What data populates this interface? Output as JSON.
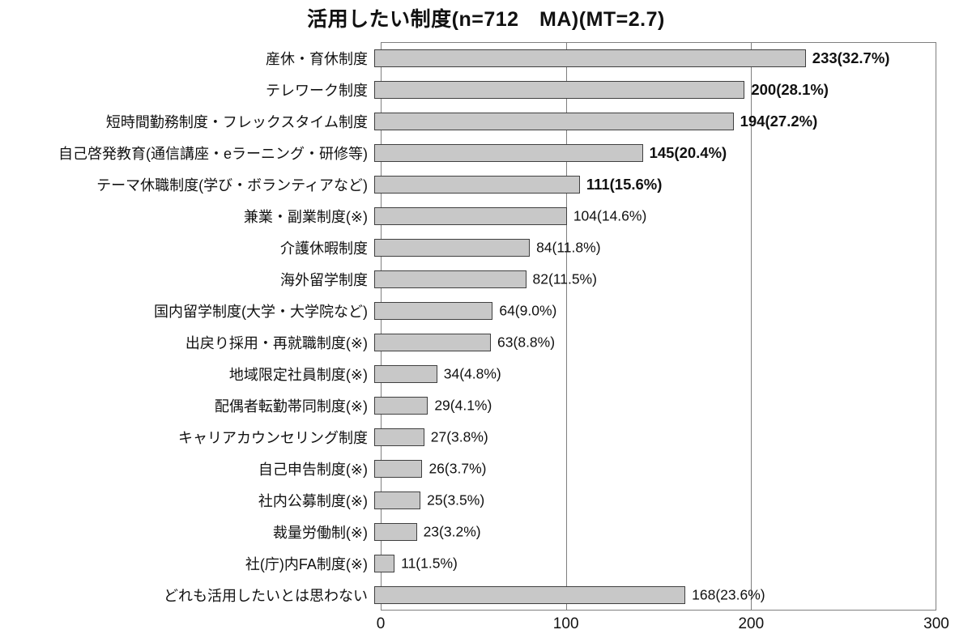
{
  "title": "活用したい制度(n=712　MA)(MT=2.7)",
  "chart_data": {
    "type": "bar",
    "orientation": "horizontal",
    "title": "活用したい制度(n=712　MA)(MT=2.7)",
    "xlabel": "",
    "ylabel": "",
    "xlim": [
      0,
      300
    ],
    "x_ticks": [
      0,
      100,
      200,
      300
    ],
    "grid": "vertical gridlines at 100 and 200",
    "legend": "none",
    "bar_color": "#c8c8c8",
    "bar_border_color": "#404040",
    "items": [
      {
        "label": "産休・育休制度",
        "value": 233,
        "display": "233(32.7%)",
        "bold": true
      },
      {
        "label": "テレワーク制度",
        "value": 200,
        "display": "200(28.1%)",
        "bold": true
      },
      {
        "label": "短時間勤務制度・フレックスタイム制度",
        "value": 194,
        "display": "194(27.2%)",
        "bold": true
      },
      {
        "label": "自己啓発教育(通信講座・eラーニング・研修等)",
        "value": 145,
        "display": "145(20.4%)",
        "bold": true
      },
      {
        "label": "テーマ休職制度(学び・ボランティアなど)",
        "value": 111,
        "display": "111(15.6%)",
        "bold": true
      },
      {
        "label": "兼業・副業制度(※)",
        "value": 104,
        "display": "104(14.6%)",
        "bold": false
      },
      {
        "label": "介護休暇制度",
        "value": 84,
        "display": "84(11.8%)",
        "bold": false
      },
      {
        "label": "海外留学制度",
        "value": 82,
        "display": "82(11.5%)",
        "bold": false
      },
      {
        "label": "国内留学制度(大学・大学院など)",
        "value": 64,
        "display": "64(9.0%)",
        "bold": false
      },
      {
        "label": "出戻り採用・再就職制度(※)",
        "value": 63,
        "display": "63(8.8%)",
        "bold": false
      },
      {
        "label": "地域限定社員制度(※)",
        "value": 34,
        "display": "34(4.8%)",
        "bold": false
      },
      {
        "label": "配偶者転勤帯同制度(※)",
        "value": 29,
        "display": "29(4.1%)",
        "bold": false
      },
      {
        "label": "キャリアカウンセリング制度",
        "value": 27,
        "display": "27(3.8%)",
        "bold": false
      },
      {
        "label": "自己申告制度(※)",
        "value": 26,
        "display": "26(3.7%)",
        "bold": false
      },
      {
        "label": "社内公募制度(※)",
        "value": 25,
        "display": "25(3.5%)",
        "bold": false
      },
      {
        "label": "裁量労働制(※)",
        "value": 23,
        "display": "23(3.2%)",
        "bold": false
      },
      {
        "label": "社(庁)内FA制度(※)",
        "value": 11,
        "display": "11(1.5%)",
        "bold": false
      },
      {
        "label": "どれも活用したいとは思わない",
        "value": 168,
        "display": "168(23.6%)",
        "bold": false
      }
    ]
  }
}
